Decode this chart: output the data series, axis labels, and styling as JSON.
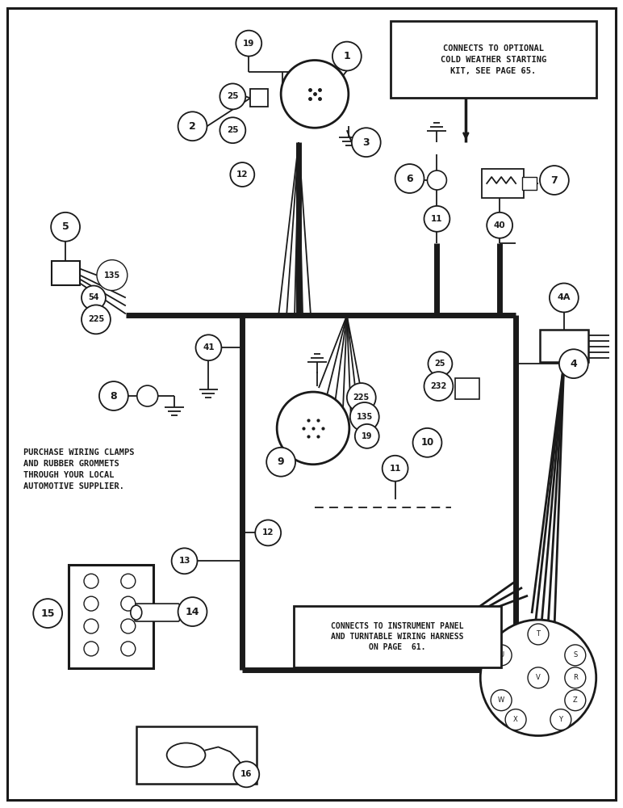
{
  "bg_color": "#ffffff",
  "line_color": "#1a1a1a",
  "thick_lw": 5.0,
  "thin_lw": 1.3,
  "fig_width": 7.72,
  "fig_height": 10.0,
  "note_left": "PURCHASE WIRING CLAMPS\nAND RUBBER GROMMETS\nTHROUGH YOUR LOCAL\nAUTOMOTIVE SUPPLIER.",
  "note_box1": "CONNECTS TO OPTIONAL\nCOLD WEATHER STARTING\nKIT, SEE PAGE 65.",
  "note_box2": "CONNECTS TO INSTRUMENT PANEL\nAND TURNTABLE WIRING HARNESS\nON PAGE  61."
}
